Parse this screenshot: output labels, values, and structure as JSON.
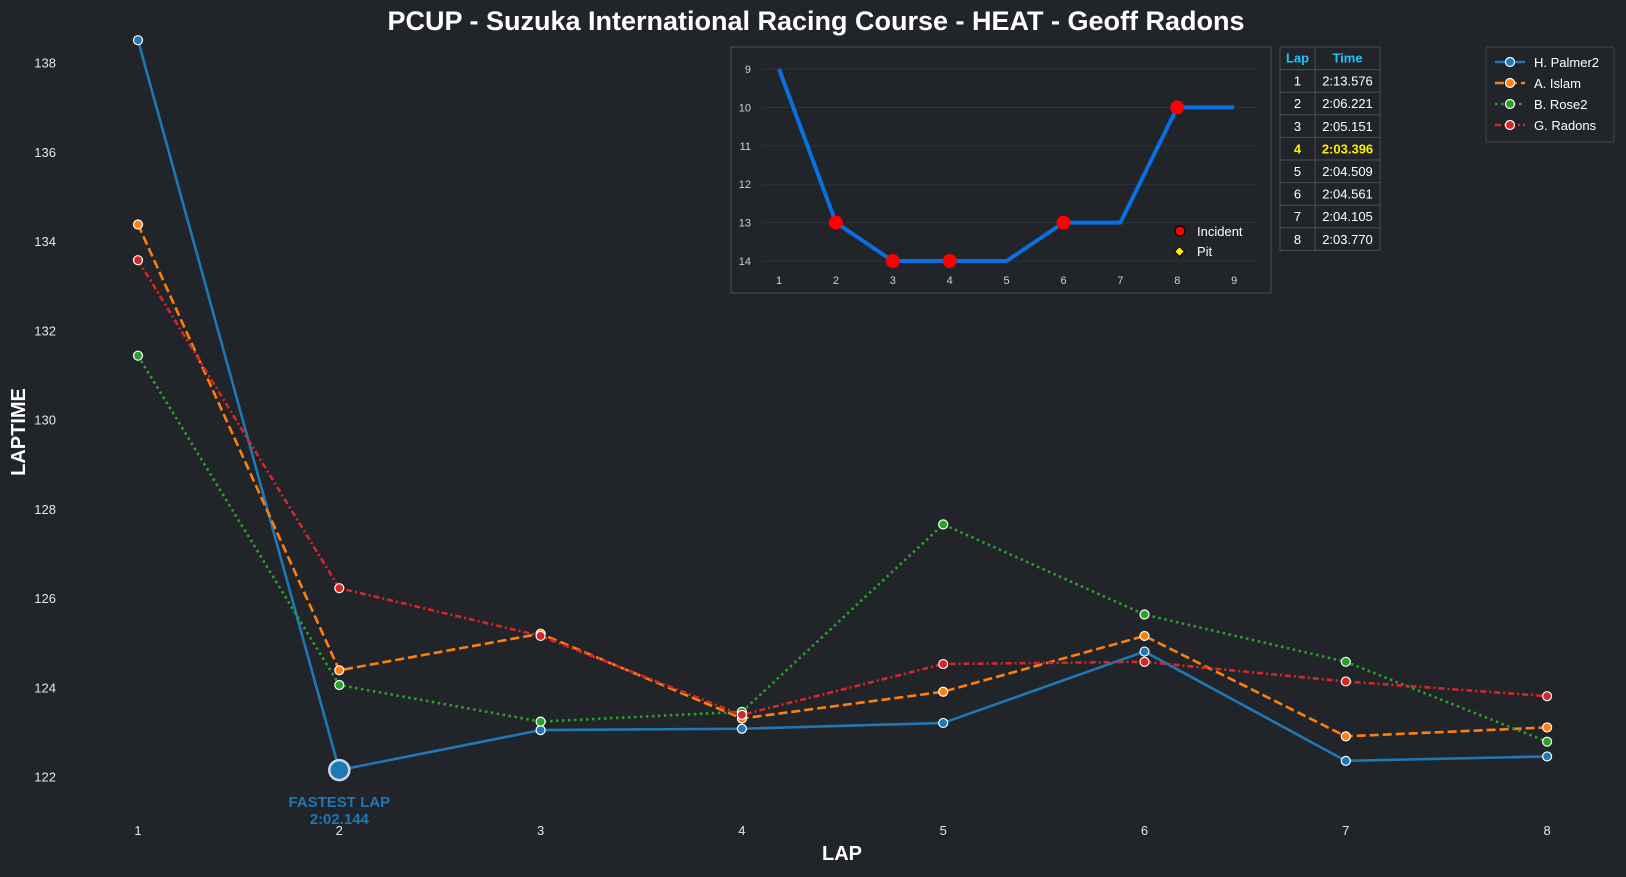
{
  "chart_data": [
    {
      "type": "line",
      "title": "PCUP - Suzuka International Racing Course - HEAT - Geoff Radons",
      "xlabel": "LAP",
      "ylabel": "LAPTIME",
      "x": [
        1,
        2,
        3,
        4,
        5,
        6,
        7,
        8
      ],
      "ylim": [
        121.0,
        138.5
      ],
      "yticks": [
        122,
        124,
        126,
        128,
        130,
        132,
        134,
        136,
        138
      ],
      "grid": false,
      "legend_position": "top-right",
      "series": [
        {
          "name": "H. Palmer2",
          "color": "#1f77b4",
          "style": "solid",
          "values": [
            138.5,
            122.144,
            123.04,
            123.07,
            123.2,
            124.8,
            122.35,
            122.45
          ]
        },
        {
          "name": "A. Islam",
          "color": "#ff7f0e",
          "style": "dashed",
          "values": [
            134.37,
            124.38,
            125.2,
            123.3,
            123.9,
            125.15,
            122.9,
            123.1
          ]
        },
        {
          "name": "B. Rose2",
          "color": "#2ca02c",
          "style": "dotted",
          "values": [
            131.43,
            124.05,
            123.23,
            123.45,
            127.65,
            125.63,
            124.57,
            122.78
          ]
        },
        {
          "name": "G. Radons",
          "color": "#d62728",
          "style": "dashdot",
          "values": [
            133.57,
            126.22,
            125.15,
            123.38,
            124.52,
            124.57,
            124.13,
            123.8
          ]
        }
      ],
      "annotations": [
        {
          "label": "FASTEST LAP",
          "value": "2:02.144",
          "x": 2,
          "y": 122.144
        }
      ]
    },
    {
      "type": "line",
      "x": [
        1,
        2,
        3,
        4,
        5,
        6,
        7,
        8,
        9
      ],
      "xticks": [
        1,
        2,
        3,
        4,
        5,
        6,
        7,
        8,
        9
      ],
      "yticks": [
        9,
        10,
        11,
        12,
        13,
        14
      ],
      "ylim": [
        14,
        9
      ],
      "y_inverted": true,
      "series": [
        {
          "name": "position",
          "color": "#0a6fe0",
          "values": [
            9,
            13,
            14,
            14,
            14,
            13,
            13,
            10,
            10
          ]
        }
      ],
      "incident_laps": [
        2,
        3,
        4,
        6,
        8
      ],
      "pit_laps": [],
      "legend": [
        {
          "label": "Incident",
          "marker": "circle",
          "color": "#ff0000"
        },
        {
          "label": "Pit",
          "marker": "diamond",
          "color": "#ffee00"
        }
      ]
    },
    {
      "type": "table",
      "columns": [
        "Lap",
        "Time"
      ],
      "rows": [
        [
          "1",
          "2:13.576"
        ],
        [
          "2",
          "2:06.221"
        ],
        [
          "3",
          "2:05.151"
        ],
        [
          "4",
          "2:03.396"
        ],
        [
          "5",
          "2:04.509"
        ],
        [
          "6",
          "2:04.561"
        ],
        [
          "7",
          "2:04.105"
        ],
        [
          "8",
          "2:03.770"
        ]
      ],
      "highlight_row": 3,
      "highlight_color": "#ffee00"
    }
  ]
}
